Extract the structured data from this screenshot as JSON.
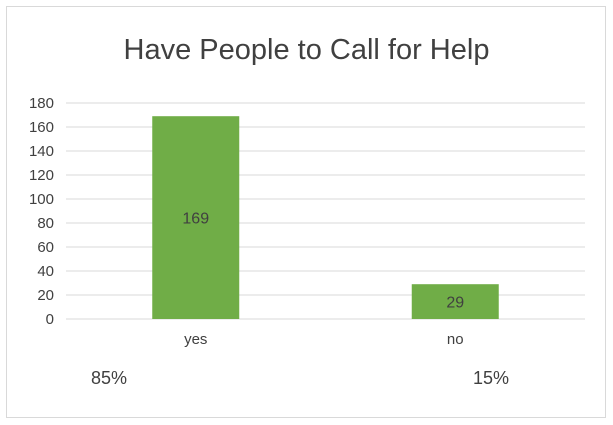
{
  "chart_data": {
    "type": "bar",
    "title": "Have People to Call for Help",
    "categories": [
      "yes",
      "no"
    ],
    "values": [
      169,
      29
    ],
    "data_labels": [
      "169",
      "29"
    ],
    "ylim": [
      0,
      180
    ],
    "yticks": [
      "0",
      "20",
      "40",
      "60",
      "80",
      "100",
      "120",
      "140",
      "160",
      "180"
    ],
    "grid": true,
    "percentages": [
      "85%",
      "15%"
    ],
    "bar_color": "#70ad47"
  }
}
